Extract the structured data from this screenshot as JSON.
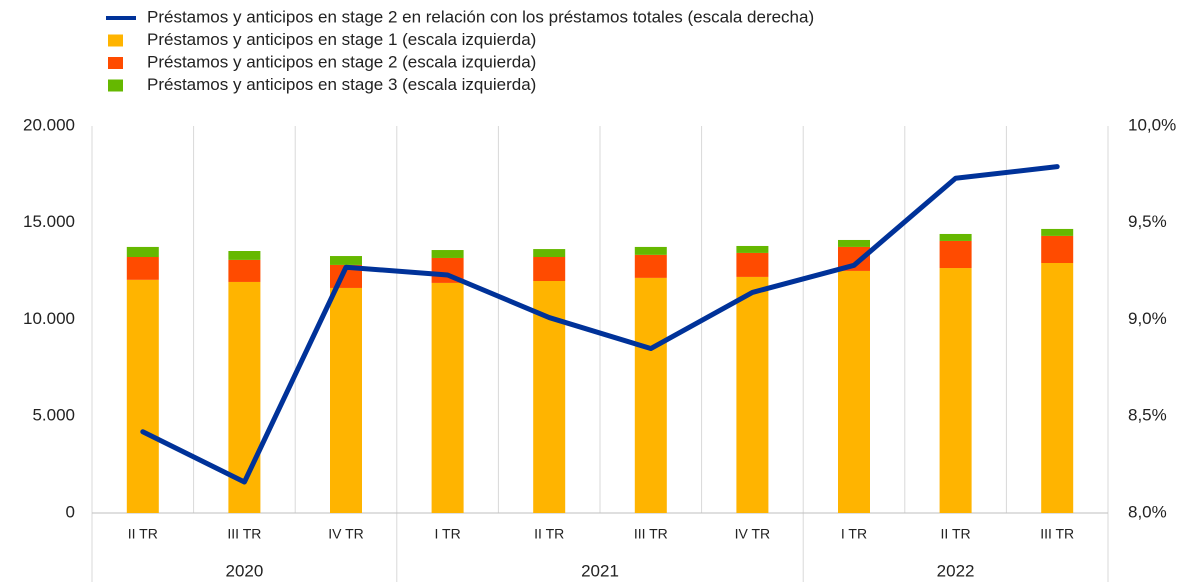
{
  "chart_data": {
    "type": "bar_line",
    "categories": [
      "II TR",
      "III TR",
      "IV TR",
      "I TR",
      "II TR",
      "III TR",
      "IV TR",
      "I TR",
      "II TR",
      "III TR"
    ],
    "years": [
      "2020",
      "2020",
      "2020",
      "2021",
      "2021",
      "2021",
      "2021",
      "2022",
      "2022",
      "2022"
    ],
    "series": [
      {
        "name": "Préstamos y anticipos en stage 2 en relación con los préstamos totales (escala derecha)",
        "type": "line",
        "axis": "y2",
        "color": "#003299",
        "values": [
          8.42,
          8.16,
          9.27,
          9.23,
          9.01,
          8.85,
          9.14,
          9.28,
          9.73,
          9.79
        ]
      },
      {
        "name": "Préstamos y anticipos en stage 1 (escala izquierda)",
        "type": "bar",
        "color": "#ffb400",
        "values": [
          12050,
          11940,
          11630,
          11890,
          11990,
          12150,
          12200,
          12510,
          12660,
          12920
        ]
      },
      {
        "name": "Préstamos y anticipos en stage 2 (escala izquierda)",
        "type": "bar",
        "color": "#ff4b00",
        "values": [
          1180,
          1140,
          1190,
          1290,
          1240,
          1190,
          1240,
          1240,
          1400,
          1400
        ]
      },
      {
        "name": "Préstamos y anticipos en stage 3 (escala izquierda)",
        "type": "bar",
        "color": "#65b800",
        "values": [
          520,
          460,
          460,
          410,
          410,
          410,
          360,
          360,
          360,
          360
        ]
      }
    ],
    "ylim": [
      0,
      20000
    ],
    "yticks": [
      0,
      {
        "value": 5000,
        "label": "5.000"
      },
      {
        "value": 10000,
        "label": "10.000"
      },
      {
        "value": 15000,
        "label": "15.000"
      },
      {
        "value": 20000,
        "label": "20.000"
      }
    ],
    "y2lim": [
      8,
      10
    ],
    "y2ticks": [
      {
        "value": 8,
        "label": "8,0%"
      },
      {
        "value": 8.5,
        "label": "8,5%"
      },
      {
        "value": 9,
        "label": "9,0%"
      },
      {
        "value": 9.5,
        "label": "9,5%"
      },
      {
        "value": 10,
        "label": "10,0%"
      }
    ],
    "grid": true
  }
}
